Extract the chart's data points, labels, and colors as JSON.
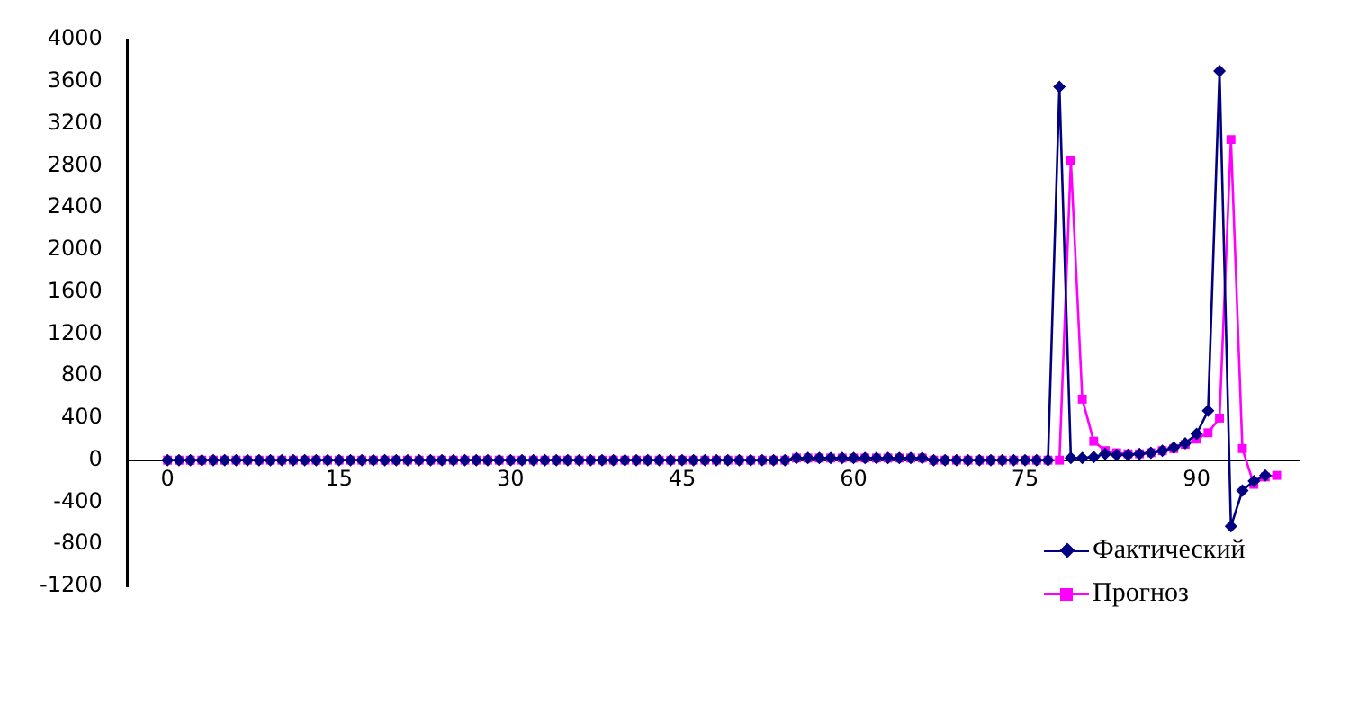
{
  "chart_data": {
    "type": "line",
    "x": [
      0,
      1,
      2,
      3,
      4,
      5,
      6,
      7,
      8,
      9,
      10,
      11,
      12,
      13,
      14,
      15,
      16,
      17,
      18,
      19,
      20,
      21,
      22,
      23,
      24,
      25,
      26,
      27,
      28,
      29,
      30,
      31,
      32,
      33,
      34,
      35,
      36,
      37,
      38,
      39,
      40,
      41,
      42,
      43,
      44,
      45,
      46,
      47,
      48,
      49,
      50,
      51,
      52,
      53,
      54,
      55,
      56,
      57,
      58,
      59,
      60,
      61,
      62,
      63,
      64,
      65,
      66,
      67,
      68,
      69,
      70,
      71,
      72,
      73,
      74,
      75,
      76,
      77,
      78,
      79,
      80,
      81,
      82,
      83,
      84,
      85,
      86,
      87,
      88,
      89,
      90,
      91,
      92,
      93,
      94,
      95,
      96,
      97
    ],
    "series": [
      {
        "name": "Фактический",
        "color": "#000080",
        "marker": "diamond",
        "values": [
          0,
          0,
          0,
          0,
          0,
          0,
          0,
          0,
          0,
          0,
          0,
          0,
          0,
          0,
          0,
          0,
          0,
          0,
          0,
          0,
          0,
          0,
          0,
          0,
          0,
          0,
          0,
          0,
          0,
          0,
          0,
          0,
          0,
          0,
          0,
          0,
          0,
          0,
          0,
          0,
          0,
          0,
          0,
          0,
          0,
          0,
          0,
          0,
          0,
          0,
          0,
          0,
          0,
          0,
          0,
          20,
          20,
          20,
          20,
          20,
          20,
          20,
          20,
          20,
          20,
          20,
          20,
          0,
          0,
          0,
          0,
          0,
          0,
          0,
          0,
          0,
          0,
          0,
          3550,
          20,
          20,
          30,
          60,
          50,
          50,
          60,
          70,
          90,
          120,
          160,
          250,
          470,
          3700,
          -630,
          -290,
          -200,
          -145,
          null
        ]
      },
      {
        "name": "Прогноз",
        "color": "#ff00ff",
        "marker": "square",
        "values": [
          0,
          0,
          0,
          0,
          0,
          0,
          0,
          0,
          0,
          0,
          0,
          0,
          0,
          0,
          0,
          0,
          0,
          0,
          0,
          0,
          0,
          0,
          0,
          0,
          0,
          0,
          0,
          0,
          0,
          0,
          0,
          0,
          0,
          0,
          0,
          0,
          0,
          0,
          0,
          0,
          0,
          0,
          0,
          0,
          0,
          0,
          0,
          0,
          0,
          0,
          0,
          0,
          0,
          0,
          0,
          20,
          20,
          20,
          20,
          20,
          20,
          20,
          20,
          20,
          20,
          20,
          20,
          0,
          0,
          0,
          0,
          0,
          0,
          0,
          0,
          0,
          0,
          0,
          0,
          2850,
          580,
          180,
          90,
          70,
          60,
          60,
          70,
          90,
          110,
          150,
          200,
          260,
          400,
          3050,
          110,
          -230,
          -160,
          -145
        ]
      }
    ],
    "xlim": [
      -3.5,
      99
    ],
    "xticks": [
      0,
      15,
      30,
      45,
      60,
      75,
      90
    ],
    "ylim": [
      -1200,
      4000
    ],
    "yticks": [
      -1200,
      -800,
      -400,
      0,
      400,
      800,
      1200,
      1600,
      2000,
      2400,
      2800,
      3200,
      3600,
      4000
    ],
    "legend": "bottom right",
    "grid": false,
    "line_style": "solid"
  }
}
